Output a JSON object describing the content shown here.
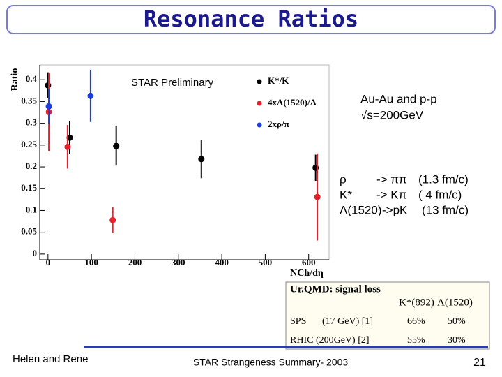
{
  "title": "Resonance Ratios",
  "chart_data": {
    "type": "scatter",
    "annotation": "STAR Preliminary",
    "y_label": "Ratio",
    "x_label": "NCh/dη",
    "xlim": [
      -19,
      647
    ],
    "ylim": [
      -0.013,
      0.434
    ],
    "xticks": [
      0,
      100,
      200,
      300,
      400,
      500,
      600
    ],
    "yticks": [
      0,
      0.05,
      0.1,
      0.15,
      0.2,
      0.25,
      0.3,
      0.35,
      0.4
    ],
    "grid": false,
    "series": [
      {
        "name": "K*/K",
        "color": "#000000",
        "x": [
          0,
          50,
          157,
          353,
          616
        ],
        "values": [
          0.387,
          0.267,
          0.248,
          0.218,
          0.198
        ],
        "errors": [
          0.03,
          0.038,
          0.045,
          0.044,
          0.03
        ]
      },
      {
        "name": "4xΛ(1520)/Λ",
        "color": "#e8202a",
        "x": [
          2,
          45,
          149,
          620
        ],
        "values": [
          0.326,
          0.246,
          0.078,
          0.131
        ],
        "errors": [
          0.09,
          0.05,
          0.03,
          0.1
        ]
      },
      {
        "name": "2xρ/π",
        "color": "#1f3fd8",
        "x": [
          2,
          98
        ],
        "values": [
          0.339,
          0.363
        ],
        "errors": [
          0.04,
          0.06
        ]
      }
    ]
  },
  "system": {
    "line1": "Au-Au and p-p",
    "line2": "√s=200GeV"
  },
  "lifetimes": [
    [
      "ρ",
      "-> ππ",
      "(1.3 fm/c)"
    ],
    [
      "K*",
      "-> Kπ",
      "( 4 fm/c)"
    ],
    [
      "Λ(1520)",
      "->pK",
      "(13 fm/c)"
    ]
  ],
  "table": {
    "caption": "Ur.QMD: signal loss",
    "header": [
      "K*(892)",
      "Λ(1520)"
    ],
    "rows": [
      [
        "SPS",
        "(17 GeV) [1]",
        "66%",
        "50%"
      ],
      [
        "RHIC (200GeV) [2]",
        "55%",
        "30%"
      ]
    ]
  },
  "footer": {
    "left": "Helen and Rene",
    "center": "STAR Strangeness Summary- 2003",
    "page": "21"
  }
}
